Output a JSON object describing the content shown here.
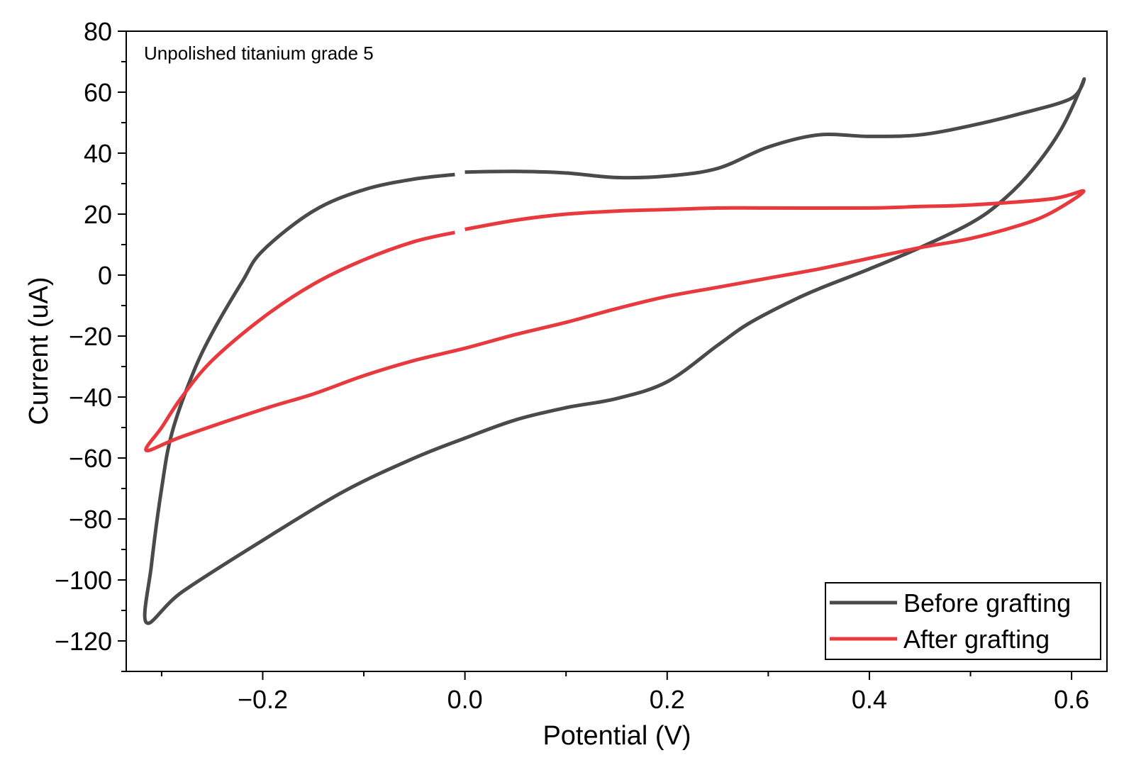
{
  "chart_data": {
    "type": "line",
    "annotation": "Unpolished titanium grade 5",
    "xlabel": "Potential (V)",
    "ylabel": "Current (uA)",
    "xlim": [
      -0.335,
      0.635
    ],
    "ylim": [
      -130,
      80
    ],
    "x_ticks": [
      -0.2,
      0.0,
      0.2,
      0.4,
      0.6
    ],
    "x_tick_labels": [
      "−0.2",
      "0.0",
      "0.2",
      "0.4",
      "0.6"
    ],
    "y_ticks": [
      80,
      60,
      40,
      20,
      0,
      -20,
      -40,
      -60,
      -80,
      -100,
      -120
    ],
    "y_tick_labels": [
      "80",
      "60",
      "40",
      "20",
      "0",
      "−20",
      "−40",
      "−60",
      "−80",
      "−100",
      "−120"
    ],
    "grid": false,
    "legend_position": "bottom-right",
    "series": [
      {
        "name": "Before grafting",
        "color": "#4a4a4a",
        "segments": [
          [
            [
              -0.01,
              33
            ],
            [
              -0.05,
              31.5
            ],
            [
              -0.1,
              28
            ],
            [
              -0.15,
              21
            ],
            [
              -0.2,
              8
            ],
            [
              -0.22,
              -2
            ],
            [
              -0.25,
              -19
            ],
            [
              -0.27,
              -33
            ],
            [
              -0.29,
              -52
            ],
            [
              -0.3,
              -70
            ],
            [
              -0.31,
              -95
            ],
            [
              -0.315,
              -114
            ],
            [
              -0.28,
              -104
            ],
            [
              -0.2,
              -87
            ],
            [
              -0.12,
              -71
            ],
            [
              -0.05,
              -60
            ],
            [
              0.0,
              -53.5
            ],
            [
              0.05,
              -47.5
            ],
            [
              0.1,
              -43.5
            ],
            [
              0.15,
              -40.5
            ],
            [
              0.2,
              -35
            ],
            [
              0.25,
              -23
            ],
            [
              0.28,
              -16
            ],
            [
              0.32,
              -9
            ],
            [
              0.35,
              -4.5
            ],
            [
              0.4,
              2
            ],
            [
              0.45,
              9
            ],
            [
              0.5,
              17
            ],
            [
              0.53,
              24
            ],
            [
              0.56,
              34
            ],
            [
              0.59,
              48
            ],
            [
              0.612,
              64
            ],
            [
              0.6,
              58
            ],
            [
              0.55,
              53
            ],
            [
              0.5,
              49
            ],
            [
              0.45,
              46
            ],
            [
              0.4,
              45.5
            ],
            [
              0.35,
              46
            ],
            [
              0.3,
              42
            ],
            [
              0.25,
              35
            ],
            [
              0.2,
              32.5
            ],
            [
              0.15,
              32
            ],
            [
              0.1,
              33.5
            ],
            [
              0.05,
              34
            ],
            [
              0.0,
              33.8
            ]
          ]
        ]
      },
      {
        "name": "After grafting",
        "color": "#e8393e",
        "segments": [
          [
            [
              -0.01,
              14
            ],
            [
              -0.05,
              11
            ],
            [
              -0.1,
              5
            ],
            [
              -0.15,
              -3
            ],
            [
              -0.2,
              -14
            ],
            [
              -0.25,
              -28
            ],
            [
              -0.28,
              -40
            ],
            [
              -0.3,
              -50
            ],
            [
              -0.315,
              -57.5
            ],
            [
              -0.28,
              -53
            ],
            [
              -0.2,
              -44
            ],
            [
              -0.15,
              -39
            ],
            [
              -0.1,
              -33
            ],
            [
              -0.05,
              -28
            ],
            [
              0.0,
              -24
            ],
            [
              0.05,
              -19.5
            ],
            [
              0.1,
              -15.5
            ],
            [
              0.15,
              -11
            ],
            [
              0.2,
              -7
            ],
            [
              0.25,
              -4
            ],
            [
              0.3,
              -1
            ],
            [
              0.35,
              2
            ],
            [
              0.4,
              5.5
            ],
            [
              0.45,
              9
            ],
            [
              0.5,
              12
            ],
            [
              0.55,
              16.5
            ],
            [
              0.58,
              20.5
            ],
            [
              0.612,
              27.5
            ],
            [
              0.58,
              25
            ],
            [
              0.5,
              23
            ],
            [
              0.45,
              22.5
            ],
            [
              0.4,
              22
            ],
            [
              0.3,
              22
            ],
            [
              0.25,
              22
            ],
            [
              0.2,
              21.5
            ],
            [
              0.15,
              21
            ],
            [
              0.1,
              20
            ],
            [
              0.05,
              18
            ],
            [
              0.0,
              15
            ]
          ]
        ]
      }
    ]
  }
}
